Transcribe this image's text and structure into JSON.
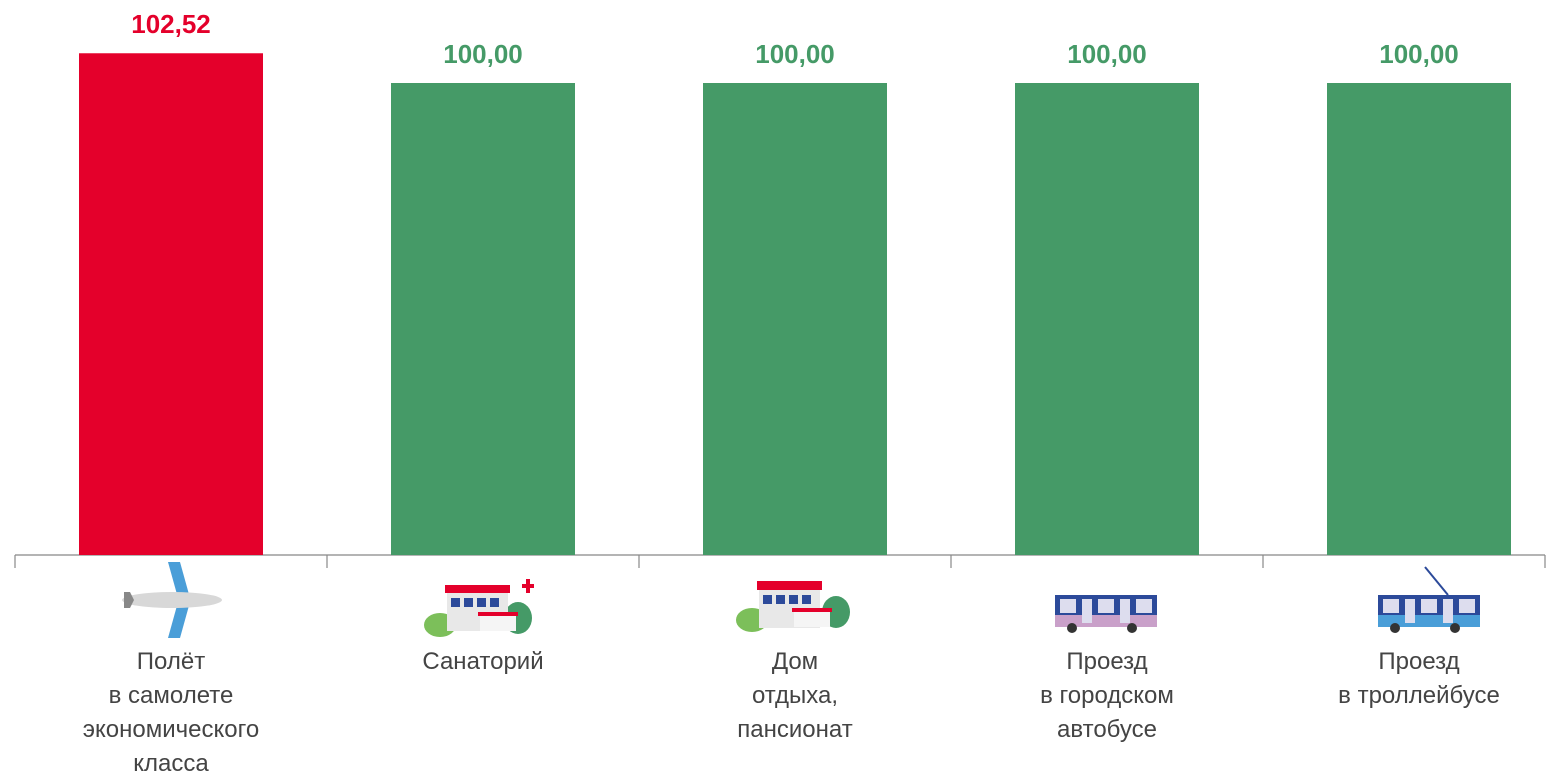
{
  "chart_data": {
    "type": "bar",
    "categories": [
      "Полёт\nв самолете\nэкономического\nкласса",
      "Санаторий",
      "Дом\nотдыха,\nпансионат",
      "Проезд\nв городском\nавтобусе",
      "Проезд\nв троллейбусе"
    ],
    "values": [
      102.52,
      100,
      100,
      100,
      100
    ],
    "value_labels": [
      "102,52",
      "100,00",
      "100,00",
      "100,00",
      "100,00"
    ],
    "colors": [
      "#e4002b",
      "#459a67",
      "#459a67",
      "#459a67",
      "#459a67"
    ],
    "ylim": [
      60,
      104
    ]
  }
}
